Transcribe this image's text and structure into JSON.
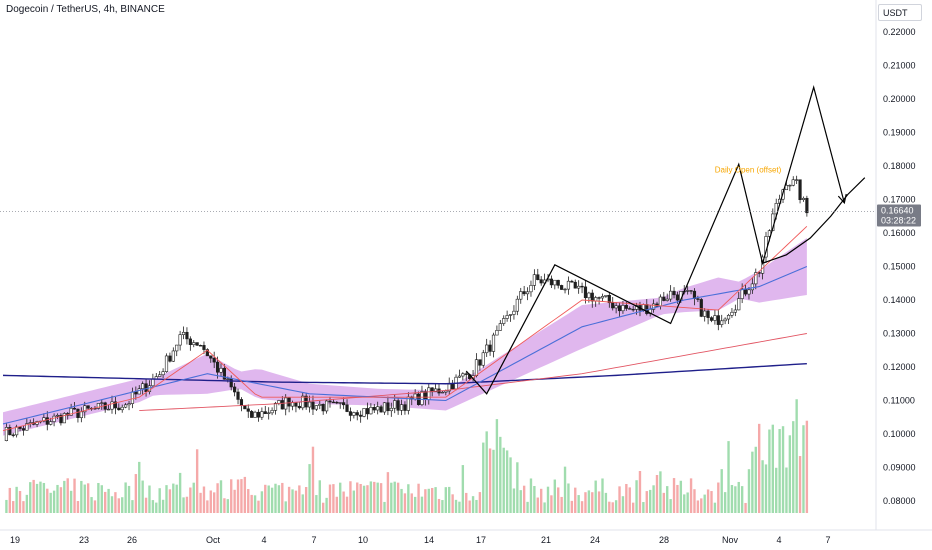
{
  "header": {
    "title": "Dogecoin / TetherUS, 4h, BINANCE",
    "currency": "USDT"
  },
  "chart_data": {
    "type": "candlestick",
    "symbol": "Dogecoin / TetherUS",
    "interval": "4h",
    "exchange": "BINANCE",
    "last_price": "0.16640",
    "countdown": "03:28:22",
    "annotation": "Daily Open (offset)",
    "y_ticks": [
      "0.08000",
      "0.09000",
      "0.10000",
      "0.11000",
      "0.12000",
      "0.13000",
      "0.14000",
      "0.15000",
      "0.16000",
      "0.17000",
      "0.18000",
      "0.19000",
      "0.20000",
      "0.21000",
      "0.22000"
    ],
    "x_ticks": [
      "19",
      "23",
      "26",
      "Oct",
      "4",
      "7",
      "10",
      "14",
      "17",
      "21",
      "24",
      "28",
      "Nov",
      "4",
      "7"
    ],
    "price_waypoints": [
      [
        0,
        0.1
      ],
      [
        20,
        0.106
      ],
      [
        36,
        0.109
      ],
      [
        46,
        0.118
      ],
      [
        52,
        0.129
      ],
      [
        58,
        0.127
      ],
      [
        62,
        0.121
      ],
      [
        68,
        0.112
      ],
      [
        72,
        0.105
      ],
      [
        78,
        0.107
      ],
      [
        84,
        0.11
      ],
      [
        96,
        0.108
      ],
      [
        108,
        0.107
      ],
      [
        118,
        0.109
      ],
      [
        130,
        0.114
      ],
      [
        138,
        0.119
      ],
      [
        146,
        0.131
      ],
      [
        152,
        0.141
      ],
      [
        156,
        0.146
      ],
      [
        162,
        0.145
      ],
      [
        168,
        0.143
      ],
      [
        176,
        0.14
      ],
      [
        184,
        0.137
      ],
      [
        190,
        0.138
      ],
      [
        196,
        0.142
      ],
      [
        202,
        0.141
      ],
      [
        208,
        0.133
      ],
      [
        212,
        0.136
      ],
      [
        216,
        0.14
      ],
      [
        222,
        0.149
      ],
      [
        226,
        0.165
      ],
      [
        230,
        0.176
      ],
      [
        233,
        0.174
      ],
      [
        236,
        0.166
      ]
    ],
    "zigzag": [
      [
        136,
        0.1188
      ],
      [
        142,
        0.112
      ],
      [
        162,
        0.1505
      ],
      [
        196,
        0.133
      ],
      [
        216,
        0.1805
      ],
      [
        223,
        0.151
      ],
      [
        238,
        0.2035
      ],
      [
        247,
        0.169
      ]
    ],
    "projection_curve": [
      [
        223,
        0.151
      ],
      [
        230,
        0.1535
      ],
      [
        237,
        0.1585
      ],
      [
        243,
        0.165
      ],
      [
        248,
        0.1715
      ],
      [
        253,
        0.1765
      ]
    ],
    "ema_fast": [
      [
        0,
        0.101
      ],
      [
        40,
        0.111
      ],
      [
        60,
        0.125
      ],
      [
        75,
        0.111
      ],
      [
        130,
        0.111
      ],
      [
        170,
        0.14
      ],
      [
        210,
        0.137
      ],
      [
        236,
        0.162
      ]
    ],
    "ema_slow": [
      [
        0,
        0.103
      ],
      [
        60,
        0.118
      ],
      [
        90,
        0.112
      ],
      [
        130,
        0.11
      ],
      [
        170,
        0.132
      ],
      [
        200,
        0.14
      ],
      [
        222,
        0.144
      ],
      [
        236,
        0.15
      ]
    ],
    "ma_200": [
      [
        40,
        0.107
      ],
      [
        80,
        0.109
      ],
      [
        130,
        0.113
      ],
      [
        170,
        0.118
      ],
      [
        236,
        0.13
      ]
    ],
    "trend_line": [
      [
        0,
        0.1175
      ],
      [
        80,
        0.1155
      ],
      [
        130,
        0.115
      ],
      [
        180,
        0.1175
      ],
      [
        236,
        0.121
      ]
    ]
  }
}
